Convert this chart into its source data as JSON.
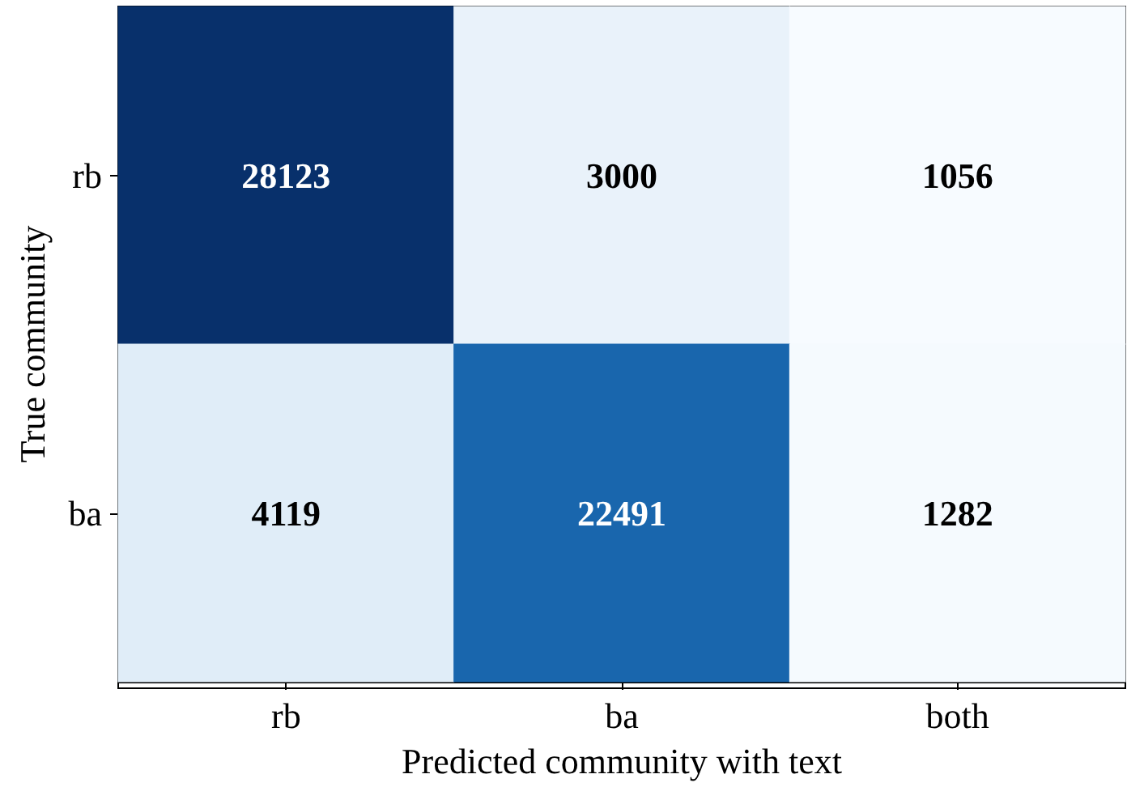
{
  "chart_data": {
    "type": "heatmap",
    "xlabel": "Predicted community with text",
    "ylabel": "True community",
    "categories": [
      "rb",
      "ba",
      "both"
    ],
    "y_categories": [
      "rb",
      "ba"
    ],
    "cells": [
      [
        28123,
        3000,
        1056
      ],
      [
        4119,
        22491,
        1282
      ]
    ],
    "data_labels": true
  }
}
